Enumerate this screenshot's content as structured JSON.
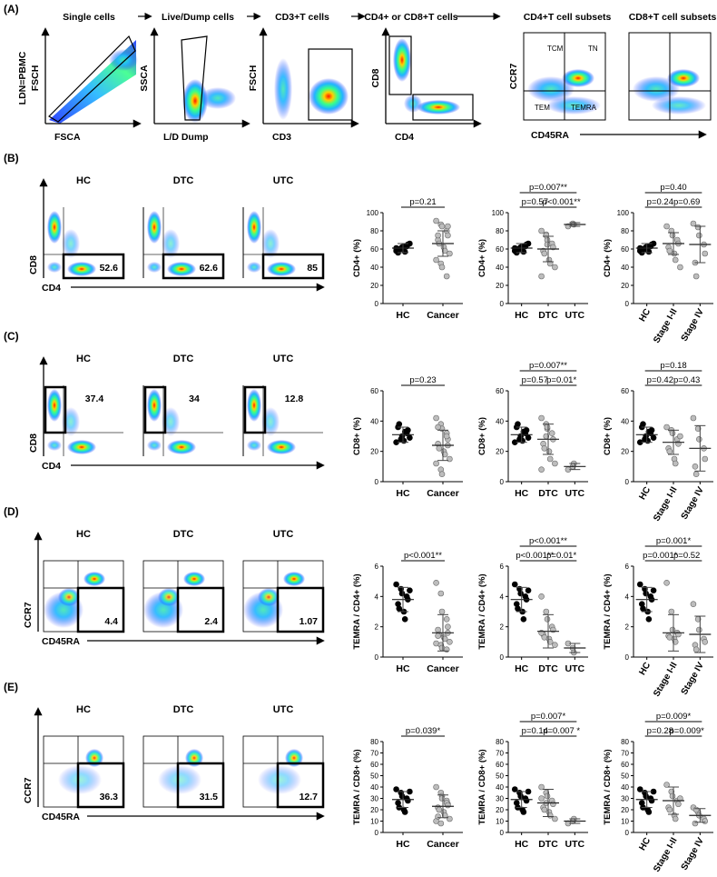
{
  "sectionA": {
    "label": "(A)",
    "steps": [
      "Single cells",
      "Live/Dump cells",
      "CD3+T cells",
      "CD4+ or CD8+T cells",
      "CD4+T cell subsets",
      "CD8+T cell subsets"
    ],
    "plots": [
      {
        "y": "FSCH",
        "x": "FSCA",
        "side": "LDN=PBMC",
        "gate": "diag"
      },
      {
        "y": "SSCA",
        "x": "L/D Dump",
        "gate": "live"
      },
      {
        "y": "FSCH",
        "x": "CD3",
        "gate": "cd3"
      },
      {
        "y": "CD8",
        "x": "CD4",
        "gate": "cd48"
      }
    ],
    "quad_labels": {
      "tl": "TCM",
      "tr": "TN",
      "bl": "TEM",
      "br": "TEMRA"
    },
    "subset_axes": {
      "y": "CCR7",
      "x": "CD45RA"
    }
  },
  "rows": [
    {
      "label": "(B)",
      "ylab": "CD8",
      "xlab": "CD4",
      "gate": "br",
      "style": "cd",
      "valpos": "br",
      "groups": [
        "HC",
        "DTC",
        "UTC"
      ],
      "values": [
        "52.6",
        "62.6",
        "85"
      ],
      "charts": [
        {
          "ylabel": "CD4+ (%)",
          "ylim": [
            0,
            100
          ],
          "ticks": [
            0,
            20,
            40,
            60,
            80,
            100
          ],
          "cats": [
            "HC",
            "Cancer"
          ],
          "points": [
            [
              58,
              60,
              62,
              63,
              65,
              56,
              60,
              63,
              57,
              66,
              61
            ],
            [
              91,
              87,
              85,
              80,
              75,
              70,
              66,
              62,
              58,
              55,
              48,
              44,
              40,
              30,
              85,
              75
            ]
          ],
          "means": [
            61,
            66
          ],
          "sds": [
            5,
            14
          ],
          "brackets": [
            {
              "from": 0,
              "to": 1,
              "level": 0,
              "label": "p=0.21"
            }
          ]
        },
        {
          "ylabel": "CD4+ (%)",
          "ylim": [
            0,
            100
          ],
          "ticks": [
            0,
            20,
            40,
            60,
            80,
            100
          ],
          "cats": [
            "HC",
            "DTC",
            "UTC"
          ],
          "points": [
            [
              58,
              60,
              62,
              63,
              65,
              56,
              60,
              63,
              57,
              66,
              61
            ],
            [
              80,
              76,
              70,
              66,
              62,
              58,
              55,
              48,
              44,
              40,
              30,
              75,
              65
            ],
            [
              85,
              88,
              87
            ]
          ],
          "means": [
            61,
            60,
            87
          ],
          "sds": [
            5,
            14,
            2
          ],
          "brackets": [
            {
              "from": 0,
              "to": 1,
              "level": 0,
              "label": "p=0.57"
            },
            {
              "from": 1,
              "to": 2,
              "level": 0,
              "label": "p<0.001**"
            },
            {
              "from": 0,
              "to": 2,
              "level": 1,
              "label": "p=0.007**"
            }
          ]
        },
        {
          "ylabel": "CD4+ (%)",
          "ylim": [
            0,
            100
          ],
          "ticks": [
            0,
            20,
            40,
            60,
            80,
            100
          ],
          "cats": [
            "HC",
            "Stage I-II",
            "Stage IV"
          ],
          "rot": true,
          "points": [
            [
              58,
              60,
              62,
              63,
              65,
              56,
              60,
              63,
              57,
              66,
              61
            ],
            [
              85,
              80,
              75,
              70,
              66,
              62,
              58,
              55,
              48,
              40
            ],
            [
              88,
              84,
              75,
              65,
              55,
              45,
              30
            ]
          ],
          "means": [
            61,
            66,
            65
          ],
          "sds": [
            5,
            12,
            20
          ],
          "brackets": [
            {
              "from": 0,
              "to": 1,
              "level": 0,
              "label": "p=0.24"
            },
            {
              "from": 1,
              "to": 2,
              "level": 0,
              "label": "p=0.69"
            },
            {
              "from": 0,
              "to": 2,
              "level": 1,
              "label": "p=0.40"
            }
          ]
        }
      ]
    },
    {
      "label": "(C)",
      "ylab": "CD8",
      "xlab": "CD4",
      "gate": "tl",
      "style": "cd",
      "valpos": "tr",
      "groups": [
        "HC",
        "DTC",
        "UTC"
      ],
      "values": [
        "37.4",
        "34",
        "12.8"
      ],
      "charts": [
        {
          "ylabel": "CD8+ (%)",
          "ylim": [
            0,
            60
          ],
          "ticks": [
            0,
            20,
            40,
            60
          ],
          "cats": [
            "HC",
            "Cancer"
          ],
          "points": [
            [
              26,
              28,
              30,
              32,
              34,
              36,
              38,
              27,
              33,
              29
            ],
            [
              42,
              38,
              35,
              32,
              28,
              25,
              22,
              20,
              18,
              15,
              12,
              8,
              5,
              30,
              24,
              36
            ]
          ],
          "means": [
            31,
            24
          ],
          "sds": [
            5,
            10
          ],
          "brackets": [
            {
              "from": 0,
              "to": 1,
              "level": 0,
              "label": "p=0.23"
            }
          ]
        },
        {
          "ylabel": "CD8+ (%)",
          "ylim": [
            0,
            60
          ],
          "ticks": [
            0,
            20,
            40,
            60
          ],
          "cats": [
            "HC",
            "DTC",
            "UTC"
          ],
          "points": [
            [
              26,
              28,
              30,
              32,
              34,
              36,
              38,
              27,
              33,
              29
            ],
            [
              42,
              38,
              35,
              32,
              28,
              25,
              22,
              20,
              15,
              12,
              8,
              30,
              36
            ],
            [
              8,
              10,
              12
            ]
          ],
          "means": [
            31,
            28,
            10
          ],
          "sds": [
            5,
            10,
            2
          ],
          "brackets": [
            {
              "from": 0,
              "to": 1,
              "level": 0,
              "label": "p=0.57"
            },
            {
              "from": 1,
              "to": 2,
              "level": 0,
              "label": "p=0.01*"
            },
            {
              "from": 0,
              "to": 2,
              "level": 1,
              "label": "p=0.007**"
            }
          ]
        },
        {
          "ylabel": "CD8+ (%)",
          "ylim": [
            0,
            60
          ],
          "ticks": [
            0,
            20,
            40,
            60
          ],
          "cats": [
            "HC",
            "Stage I-II",
            "Stage IV"
          ],
          "rot": true,
          "points": [
            [
              26,
              28,
              30,
              32,
              34,
              36,
              38,
              27,
              33,
              29
            ],
            [
              36,
              34,
              32,
              28,
              25,
              22,
              20,
              15,
              12,
              30
            ],
            [
              42,
              35,
              28,
              22,
              15,
              10,
              5
            ]
          ],
          "means": [
            31,
            26,
            22
          ],
          "sds": [
            5,
            8,
            15
          ],
          "brackets": [
            {
              "from": 0,
              "to": 1,
              "level": 0,
              "label": "p=0.42"
            },
            {
              "from": 1,
              "to": 2,
              "level": 0,
              "label": "p=0.43"
            },
            {
              "from": 0,
              "to": 2,
              "level": 1,
              "label": "p=0.18"
            }
          ]
        }
      ]
    },
    {
      "label": "(D)",
      "ylab": "CCR7",
      "xlab": "CD45RA",
      "gate": "br",
      "style": "quad",
      "valpos": "br",
      "groups": [
        "HC",
        "DTC",
        "UTC"
      ],
      "values": [
        "4.4",
        "2.4",
        "1.07"
      ],
      "charts": [
        {
          "ylabel": "TEMRA / CD4+ (%)",
          "ylim": [
            0,
            6
          ],
          "ticks": [
            0,
            2,
            4,
            6
          ],
          "cats": [
            "HC",
            "Cancer"
          ],
          "points": [
            [
              4.8,
              4.5,
              4.2,
              4.0,
              3.8,
              3.5,
              3.2,
              3.0,
              2.5,
              4.4
            ],
            [
              4.9,
              4.2,
              3.0,
              2.5,
              2.0,
              1.8,
              1.5,
              1.3,
              1.2,
              1.0,
              0.9,
              0.8,
              0.6,
              0.5,
              1.6,
              1.4
            ]
          ],
          "means": [
            3.8,
            1.6
          ],
          "sds": [
            0.8,
            1.2
          ],
          "brackets": [
            {
              "from": 0,
              "to": 1,
              "level": 0,
              "label": "p<0.001**"
            }
          ]
        },
        {
          "ylabel": "TEMRA / CD4+ (%)",
          "ylim": [
            0,
            6
          ],
          "ticks": [
            0,
            2,
            4,
            6
          ],
          "cats": [
            "HC",
            "DTC",
            "UTC"
          ],
          "points": [
            [
              4.8,
              4.5,
              4.2,
              4.0,
              3.8,
              3.5,
              3.2,
              3.0,
              2.5,
              4.4
            ],
            [
              4.0,
              3.0,
              2.5,
              2.0,
              1.8,
              1.5,
              1.3,
              1.2,
              1.0,
              0.8,
              1.6
            ],
            [
              0.9,
              0.6,
              0.3
            ]
          ],
          "means": [
            3.8,
            1.7,
            0.6
          ],
          "sds": [
            0.8,
            1.1,
            0.3
          ],
          "brackets": [
            {
              "from": 0,
              "to": 1,
              "level": 0,
              "label": "p<0.001**"
            },
            {
              "from": 1,
              "to": 2,
              "level": 0,
              "label": "p=0.01*"
            },
            {
              "from": 0,
              "to": 2,
              "level": 1,
              "label": "p<0.001**"
            }
          ]
        },
        {
          "ylabel": "TEMRA / CD4+ (%)",
          "ylim": [
            0,
            6
          ],
          "ticks": [
            0,
            2,
            4,
            6
          ],
          "cats": [
            "HC",
            "Stage I-II",
            "Stage IV"
          ],
          "rot": true,
          "points": [
            [
              4.8,
              4.5,
              4.2,
              4.0,
              3.8,
              3.5,
              3.2,
              3.0,
              2.5,
              4.4
            ],
            [
              4.9,
              3.0,
              1.8,
              1.6,
              1.5,
              1.4,
              1.3,
              1.2,
              1.0
            ],
            [
              3.5,
              2.5,
              1.8,
              1.2,
              1.0,
              0.8,
              0.5
            ]
          ],
          "means": [
            3.8,
            1.6,
            1.5
          ],
          "sds": [
            0.8,
            1.2,
            1.2
          ],
          "brackets": [
            {
              "from": 0,
              "to": 1,
              "level": 0,
              "label": "p=0.001*"
            },
            {
              "from": 1,
              "to": 2,
              "level": 0,
              "label": "p=0.52"
            },
            {
              "from": 0,
              "to": 2,
              "level": 1,
              "label": "p=0.001*"
            }
          ]
        }
      ]
    },
    {
      "label": "(E)",
      "ylab": "CCR7",
      "xlab": "CD45RA",
      "gate": "br",
      "style": "quad",
      "valpos": "br",
      "groups": [
        "HC",
        "DTC",
        "UTC"
      ],
      "values": [
        "36.3",
        "31.5",
        "12.7"
      ],
      "charts": [
        {
          "ylabel": "TEMRA / CD8+ (%)",
          "ylim": [
            0,
            80
          ],
          "ticks": [
            0,
            10,
            20,
            30,
            40,
            50,
            60,
            70,
            80
          ],
          "cats": [
            "HC",
            "Cancer"
          ],
          "points": [
            [
              38,
              35,
              32,
              30,
              28,
              26,
              22,
              20,
              18,
              36
            ],
            [
              40,
              35,
              32,
              28,
              25,
              22,
              20,
              18,
              15,
              12,
              10,
              8,
              30,
              26,
              24,
              14
            ]
          ],
          "means": [
            29,
            23
          ],
          "sds": [
            7,
            10
          ],
          "brackets": [
            {
              "from": 0,
              "to": 1,
              "level": 0,
              "label": "p=0.039*"
            }
          ]
        },
        {
          "ylabel": "TEMRA / CD8+ (%)",
          "ylim": [
            0,
            80
          ],
          "ticks": [
            0,
            10,
            20,
            30,
            40,
            50,
            60,
            70,
            80
          ],
          "cats": [
            "HC",
            "DTC",
            "UTC"
          ],
          "points": [
            [
              38,
              35,
              32,
              30,
              28,
              26,
              22,
              20,
              18,
              36
            ],
            [
              40,
              35,
              32,
              28,
              25,
              22,
              20,
              18,
              15,
              12,
              30,
              26
            ],
            [
              8,
              10,
              12
            ]
          ],
          "means": [
            29,
            26,
            10
          ],
          "sds": [
            7,
            12,
            2
          ],
          "brackets": [
            {
              "from": 0,
              "to": 1,
              "level": 0,
              "label": "p=0.14"
            },
            {
              "from": 1,
              "to": 2,
              "level": 0,
              "label": "p=0.007 *"
            },
            {
              "from": 0,
              "to": 2,
              "level": 1,
              "label": "p=0.007*"
            }
          ]
        },
        {
          "ylabel": "TEMRA / CD8+ (%)",
          "ylim": [
            0,
            80
          ],
          "ticks": [
            0,
            10,
            20,
            30,
            40,
            50,
            60,
            70,
            80
          ],
          "cats": [
            "HC",
            "Stage I-II",
            "Stage IV"
          ],
          "rot": true,
          "points": [
            [
              38,
              35,
              32,
              30,
              28,
              26,
              22,
              20,
              18,
              36
            ],
            [
              42,
              36,
              32,
              28,
              25,
              22,
              20,
              15,
              12,
              30
            ],
            [
              22,
              18,
              15,
              12,
              10,
              8,
              20
            ]
          ],
          "means": [
            29,
            28,
            15
          ],
          "sds": [
            7,
            12,
            6
          ],
          "brackets": [
            {
              "from": 0,
              "to": 1,
              "level": 0,
              "label": "p=0.28"
            },
            {
              "from": 1,
              "to": 2,
              "level": 0,
              "label": "p=0.009*"
            },
            {
              "from": 0,
              "to": 2,
              "level": 1,
              "label": "p=0.009*"
            }
          ]
        }
      ]
    }
  ]
}
